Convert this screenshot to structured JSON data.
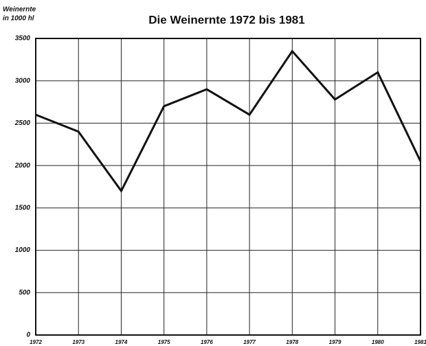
{
  "chart_data": {
    "type": "line",
    "title": "Die Weinernte 1972 bis 1981",
    "y_label": [
      "Weinernte",
      "in 1000 hl"
    ],
    "categories": [
      "1972",
      "1973",
      "1974",
      "1975",
      "1976",
      "1977",
      "1978",
      "1979",
      "1980",
      "1981"
    ],
    "series": [
      {
        "name": "Weinernte",
        "color": "#111111",
        "values": [
          2600,
          2400,
          1700,
          2700,
          2900,
          2600,
          3350,
          2780,
          3100,
          2050
        ]
      }
    ],
    "ylim": [
      0,
      3500
    ],
    "yticks": [
      0,
      500,
      1000,
      1500,
      2000,
      2500,
      3000,
      3500
    ],
    "grid": true
  }
}
